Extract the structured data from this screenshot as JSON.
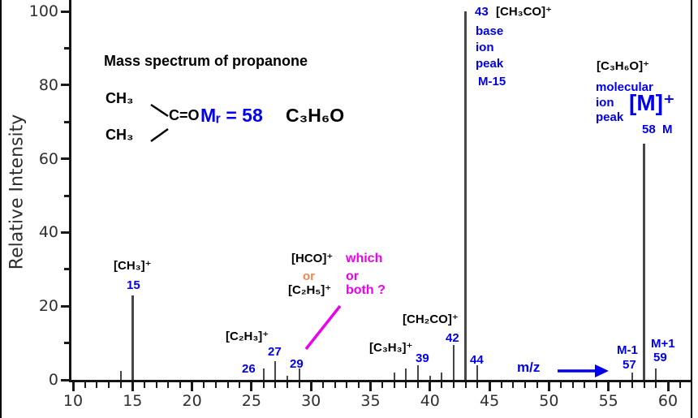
{
  "header": {
    "title": "Mass spectrum of propanone"
  },
  "colors": {
    "blue": "#0000ee",
    "magenta": "#ee00ee",
    "orange": "#f4854d",
    "black": "#000000",
    "peak_gray": "#474747"
  },
  "structure": {
    "ch3_top": "CH₃",
    "ch3_bottom": "CH₃",
    "carbonyl": "C=O",
    "mr_label": "Mᵣ = 58",
    "molecular_formula": "C₃H₆O"
  },
  "annotations": {
    "p15": {
      "ion": "[CH₃]⁺",
      "num": "15"
    },
    "p26": {
      "num": "26"
    },
    "p27": {
      "ion": "[C₂H₃]⁺",
      "num": "27"
    },
    "p29": {
      "num": "29",
      "alt1": "[HCO]⁺",
      "or1": "or",
      "alt2": "[C₂H₅]⁺",
      "q1": "which",
      "q2": "or",
      "q3": "both ?"
    },
    "p39": {
      "ion": "[C₃H₃]⁺",
      "num": "39"
    },
    "p42": {
      "ion": "[CH₂CO]⁺",
      "num": "42"
    },
    "p43": {
      "num": "43",
      "ion": "[CH₃CO]⁺",
      "note1": "base",
      "note2": "ion",
      "note3": "peak",
      "note4": "M-15"
    },
    "p44": {
      "num": "44"
    },
    "p57": {
      "note": "M-1",
      "num": "57"
    },
    "p58": {
      "ion": "[C₃H₆O]⁺",
      "note1": "molecular",
      "note2": "ion",
      "note3": "peak",
      "symbol": "[M]⁺",
      "note4": "58  M"
    },
    "p59": {
      "note": "M+1",
      "num": "59"
    },
    "xaxis_pointer": "m/z"
  },
  "chart_data": {
    "type": "bar",
    "title": "Mass spectrum of propanone",
    "xlabel": "m/z",
    "ylabel": "Relative Intensity",
    "xlim": [
      10,
      61
    ],
    "ylim": [
      0,
      100
    ],
    "grid": false,
    "x_tick_labels": [
      10,
      15,
      20,
      25,
      30,
      35,
      40,
      45,
      50,
      55,
      60
    ],
    "y_tick_labels": [
      0,
      20,
      40,
      60,
      80,
      100
    ],
    "x_minor_tick_step": 1,
    "y_minor_tick_step": 10,
    "peaks": [
      {
        "mz": 14,
        "intensity": 2.5
      },
      {
        "mz": 15,
        "intensity": 23,
        "ion": "[CH₃]⁺"
      },
      {
        "mz": 26,
        "intensity": 3
      },
      {
        "mz": 27,
        "intensity": 5,
        "ion": "[C₂H₃]⁺"
      },
      {
        "mz": 28,
        "intensity": 1
      },
      {
        "mz": 29,
        "intensity": 3,
        "ion": "[HCO]⁺ or [C₂H₅]⁺ — which or both ?"
      },
      {
        "mz": 37,
        "intensity": 2
      },
      {
        "mz": 38,
        "intensity": 3
      },
      {
        "mz": 39,
        "intensity": 4,
        "ion": "[C₃H₃]⁺"
      },
      {
        "mz": 40,
        "intensity": 1.2
      },
      {
        "mz": 41,
        "intensity": 2
      },
      {
        "mz": 42,
        "intensity": 9.5,
        "ion": "[CH₂CO]⁺"
      },
      {
        "mz": 43,
        "intensity": 100,
        "ion": "[CH₃CO]⁺",
        "note": "base ion peak, M-15"
      },
      {
        "mz": 44,
        "intensity": 4
      },
      {
        "mz": 57,
        "intensity": 2,
        "note": "M-1"
      },
      {
        "mz": 58,
        "intensity": 64,
        "ion": "[C₃H₆O]⁺",
        "note": "molecular ion peak [M]⁺, M"
      },
      {
        "mz": 59,
        "intensity": 3,
        "note": "M+1"
      }
    ]
  }
}
